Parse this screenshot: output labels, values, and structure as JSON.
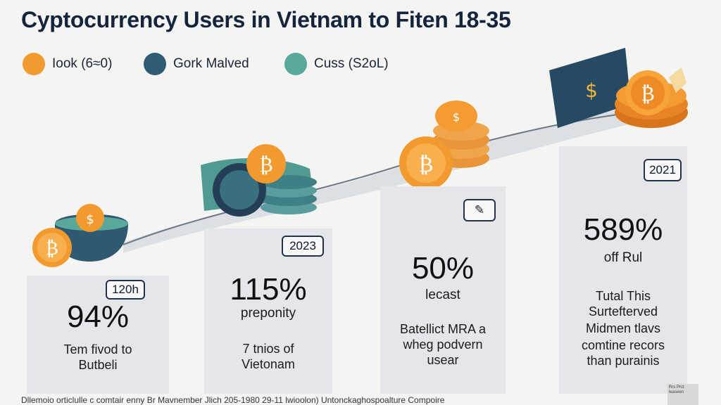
{
  "title": "Cyptocurrency Users in Vietnam to Fiten 18-35",
  "legend": [
    {
      "label": "Iook (6≈0)",
      "color": "#f19a2e"
    },
    {
      "label": "Gork Malved",
      "color": "#2f5c73"
    },
    {
      "label": "Cuss (S2oL)",
      "color": "#58a89b"
    }
  ],
  "cards": [
    {
      "badge": "120h",
      "value": "94%",
      "sub": "",
      "desc": [
        "Tem fivod to",
        "Butbeli"
      ]
    },
    {
      "badge": "2023",
      "value": "115%",
      "sub": "preponity",
      "desc": [
        "7 tnios of",
        "Vietonam"
      ]
    },
    {
      "badge": "✎",
      "value": "50%",
      "sub": "lecast",
      "desc": [
        "Batellict MRA a",
        "wheg podvern",
        "usear"
      ]
    },
    {
      "badge": "2021",
      "value": "589%",
      "sub": "off Rul",
      "desc": [
        "Tutal This",
        "Surtefterved",
        "Midmen tlavs",
        "comtine recors",
        "than purainis"
      ]
    }
  ],
  "footer": "Dllemoio orticlulle c comtair enny Br Mavnember Jlich 205-1980 29-11 lwioolon) Untonckaghospoalture Compoire",
  "corner_note": "Rrs Prct leaseen",
  "coin_symbols": {
    "bitcoin": "₿",
    "dollar": "$",
    "cash": "$"
  }
}
